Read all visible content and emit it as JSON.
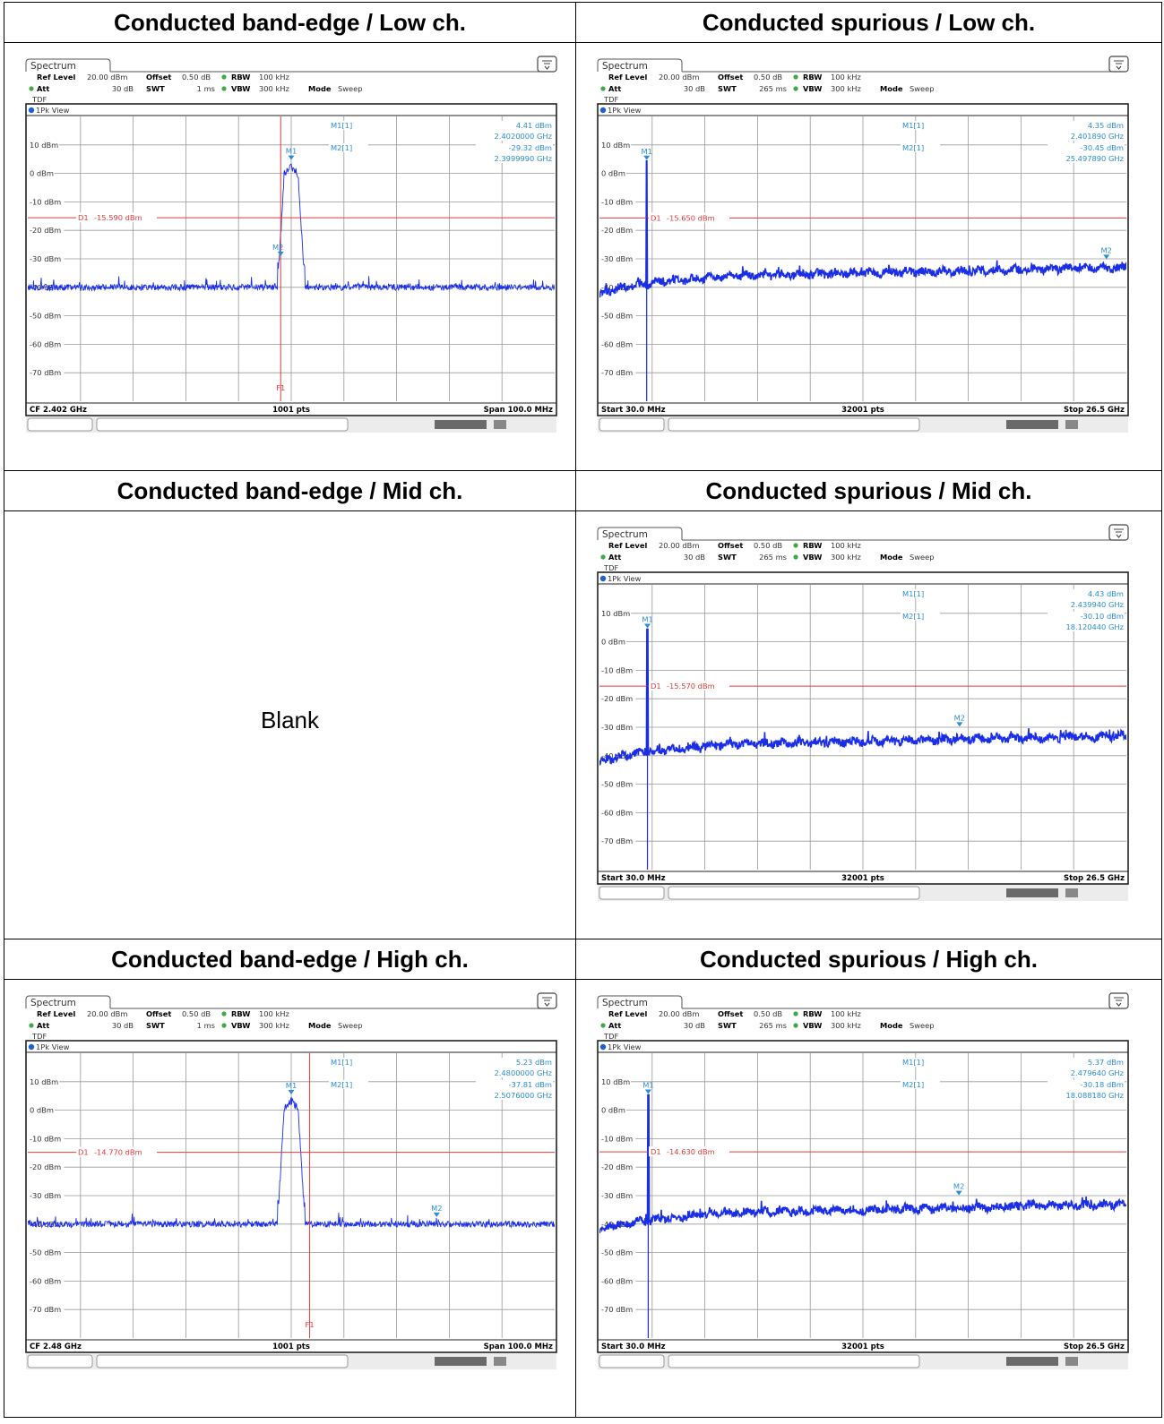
{
  "headers": {
    "row1_left": "Conducted band-edge / Low ch.",
    "row1_right": "Conducted spurious / Low ch.",
    "row2_left": "Conducted band-edge / Mid ch.",
    "row2_right": "Conducted spurious / Mid ch.",
    "row3_left": "Conducted band-edge / High ch.",
    "row3_right": "Conducted spurious / High ch."
  },
  "blank_text": "Blank",
  "colors": {
    "trace": "#1a2ee6",
    "limit": "#e23a3a",
    "marker": "#2b8ed0",
    "grid": "#9a9a9a"
  },
  "chart_data": [
    {
      "id": "bandedge_low",
      "type": "line",
      "tab": "Spectrum",
      "view": "1Pk View",
      "header": {
        "ref_level_label": "Ref Level",
        "ref_level": "20.00 dBm",
        "offset_label": "Offset",
        "offset": "0.50 dB",
        "rbw_label": "RBW",
        "rbw": "100 kHz",
        "att_label": "Att",
        "att": "30 dB",
        "swt_label": "SWT",
        "swt": "1 ms",
        "vbw_label": "VBW",
        "vbw": "300 kHz",
        "mode_label": "Mode",
        "mode": "Sweep",
        "tdf": "TDF"
      },
      "y_ticks": [
        "10 dBm",
        "0 dBm",
        "-10 dBm",
        "-20 dBm",
        "-30 dBm",
        "-40 dBm",
        "-50 dBm",
        "-60 dBm",
        "-70 dBm"
      ],
      "ylim": [
        -80,
        20
      ],
      "xlim": [
        2352.0,
        2452.0
      ],
      "footer": {
        "left": "CF 2.402 GHz",
        "center": "1001 pts",
        "right": "Span 100.0 MHz"
      },
      "limit_line": {
        "label": "D1",
        "value": "-15.590 dBm",
        "level": -15.59
      },
      "freq_line": {
        "label": "F1",
        "x": 2400.0
      },
      "markers": [
        {
          "name": "M1",
          "readout_label": "M1[1]",
          "level": "4.41 dBm",
          "freq": "2.4020000 GHz",
          "x": 2402.0,
          "y": 4.41
        },
        {
          "name": "M2",
          "readout_label": "M2[1]",
          "level": "-29.32 dBm",
          "freq": "2.3999990 GHz",
          "x": 2399.999,
          "y": -29.32
        }
      ],
      "trace": {
        "kind": "bandedge",
        "noise_floor": -40,
        "peak_center": 2402.0,
        "peak_level": 4.41
      }
    },
    {
      "id": "spurious_low",
      "type": "line",
      "tab": "Spectrum",
      "view": "1Pk View",
      "header": {
        "ref_level_label": "Ref Level",
        "ref_level": "20.00 dBm",
        "offset_label": "Offset",
        "offset": "0.50 dB",
        "rbw_label": "RBW",
        "rbw": "100 kHz",
        "att_label": "Att",
        "att": "30 dB",
        "swt_label": "SWT",
        "swt": "265 ms",
        "vbw_label": "VBW",
        "vbw": "300 kHz",
        "mode_label": "Mode",
        "mode": "Sweep",
        "tdf": "TDF"
      },
      "y_ticks": [
        "10 dBm",
        "0 dBm",
        "-10 dBm",
        "-20 dBm",
        "-30 dBm",
        "-40 dBm",
        "-50 dBm",
        "-60 dBm",
        "-70 dBm"
      ],
      "ylim": [
        -80,
        20
      ],
      "xlim": [
        0.03,
        26.5
      ],
      "footer": {
        "left": "Start 30.0 MHz",
        "center": "32001 pts",
        "right": "Stop 26.5 GHz"
      },
      "limit_line": {
        "label": "D1",
        "value": "-15.650 dBm",
        "level": -15.65
      },
      "markers": [
        {
          "name": "M1",
          "readout_label": "M1[1]",
          "level": "4.35 dBm",
          "freq": "2.401890 GHz",
          "x": 2.40189,
          "y": 4.35
        },
        {
          "name": "M2",
          "readout_label": "M2[1]",
          "level": "-30.45 dBm",
          "freq": "25.497890 GHz",
          "x": 25.49789,
          "y": -30.45
        }
      ],
      "trace": {
        "kind": "spurious",
        "start_level": -43,
        "plateau_level": -36,
        "end_level": -33,
        "carrier_x": 2.402,
        "carrier_level": 4.35
      }
    },
    {
      "id": "spurious_mid",
      "type": "line",
      "tab": "Spectrum",
      "view": "1Pk View",
      "header": {
        "ref_level_label": "Ref Level",
        "ref_level": "20.00 dBm",
        "offset_label": "Offset",
        "offset": "0.50 dB",
        "rbw_label": "RBW",
        "rbw": "100 kHz",
        "att_label": "Att",
        "att": "30 dB",
        "swt_label": "SWT",
        "swt": "265 ms",
        "vbw_label": "VBW",
        "vbw": "300 kHz",
        "mode_label": "Mode",
        "mode": "Sweep",
        "tdf": "TDF"
      },
      "y_ticks": [
        "10 dBm",
        "0 dBm",
        "-10 dBm",
        "-20 dBm",
        "-30 dBm",
        "-40 dBm",
        "-50 dBm",
        "-60 dBm",
        "-70 dBm"
      ],
      "ylim": [
        -80,
        20
      ],
      "xlim": [
        0.03,
        26.5
      ],
      "footer": {
        "left": "Start 30.0 MHz",
        "center": "32001 pts",
        "right": "Stop 26.5 GHz"
      },
      "limit_line": {
        "label": "D1",
        "value": "-15.570 dBm",
        "level": -15.57
      },
      "markers": [
        {
          "name": "M1",
          "readout_label": "M1[1]",
          "level": "4.43 dBm",
          "freq": "2.439940 GHz",
          "x": 2.43994,
          "y": 4.43
        },
        {
          "name": "M2",
          "readout_label": "M2[1]",
          "level": "-30.10 dBm",
          "freq": "18.120440 GHz",
          "x": 18.12044,
          "y": -30.1
        }
      ],
      "trace": {
        "kind": "spurious",
        "start_level": -43,
        "plateau_level": -36,
        "end_level": -33,
        "carrier_x": 2.44,
        "carrier_level": 4.43
      }
    },
    {
      "id": "bandedge_high",
      "type": "line",
      "tab": "Spectrum",
      "view": "1Pk View",
      "header": {
        "ref_level_label": "Ref Level",
        "ref_level": "20.00 dBm",
        "offset_label": "Offset",
        "offset": "0.50 dB",
        "rbw_label": "RBW",
        "rbw": "100 kHz",
        "att_label": "Att",
        "att": "30 dB",
        "swt_label": "SWT",
        "swt": "1 ms",
        "vbw_label": "VBW",
        "vbw": "300 kHz",
        "mode_label": "Mode",
        "mode": "Sweep",
        "tdf": "TDF"
      },
      "y_ticks": [
        "10 dBm",
        "0 dBm",
        "-10 dBm",
        "-20 dBm",
        "-30 dBm",
        "-40 dBm",
        "-50 dBm",
        "-60 dBm",
        "-70 dBm"
      ],
      "ylim": [
        -80,
        20
      ],
      "xlim": [
        2430.0,
        2530.0
      ],
      "footer": {
        "left": "CF 2.48 GHz",
        "center": "1001 pts",
        "right": "Span 100.0 MHz"
      },
      "limit_line": {
        "label": "D1",
        "value": "-14.770 dBm",
        "level": -14.77
      },
      "freq_line": {
        "label": "F1",
        "x": 2483.5
      },
      "markers": [
        {
          "name": "M1",
          "readout_label": "M1[1]",
          "level": "5.23 dBm",
          "freq": "2.4800000 GHz",
          "x": 2480.0,
          "y": 5.23
        },
        {
          "name": "M2",
          "readout_label": "M2[1]",
          "level": "-37.81 dBm",
          "freq": "2.5076000 GHz",
          "x": 2507.6,
          "y": -37.81
        }
      ],
      "trace": {
        "kind": "bandedge",
        "noise_floor": -40,
        "peak_center": 2480.0,
        "peak_level": 5.23
      }
    },
    {
      "id": "spurious_high",
      "type": "line",
      "tab": "Spectrum",
      "view": "1Pk View",
      "header": {
        "ref_level_label": "Ref Level",
        "ref_level": "20.00 dBm",
        "offset_label": "Offset",
        "offset": "0.50 dB",
        "rbw_label": "RBW",
        "rbw": "100 kHz",
        "att_label": "Att",
        "att": "30 dB",
        "swt_label": "SWT",
        "swt": "265 ms",
        "vbw_label": "VBW",
        "vbw": "300 kHz",
        "mode_label": "Mode",
        "mode": "Sweep",
        "tdf": "TDF"
      },
      "y_ticks": [
        "10 dBm",
        "0 dBm",
        "-10 dBm",
        "-20 dBm",
        "-30 dBm",
        "-40 dBm",
        "-50 dBm",
        "-60 dBm",
        "-70 dBm"
      ],
      "ylim": [
        -80,
        20
      ],
      "xlim": [
        0.03,
        26.5
      ],
      "footer": {
        "left": "Start 30.0 MHz",
        "center": "32001 pts",
        "right": "Stop 26.5 GHz"
      },
      "limit_line": {
        "label": "D1",
        "value": "-14.630 dBm",
        "level": -14.63
      },
      "markers": [
        {
          "name": "M1",
          "readout_label": "M1[1]",
          "level": "5.37 dBm",
          "freq": "2.479640 GHz",
          "x": 2.47964,
          "y": 5.37
        },
        {
          "name": "M2",
          "readout_label": "M2[1]",
          "level": "-30.18 dBm",
          "freq": "18.088180 GHz",
          "x": 18.08818,
          "y": -30.18
        }
      ],
      "trace": {
        "kind": "spurious",
        "start_level": -43,
        "plateau_level": -36,
        "end_level": -33,
        "carrier_x": 2.48,
        "carrier_level": 5.37
      }
    }
  ]
}
